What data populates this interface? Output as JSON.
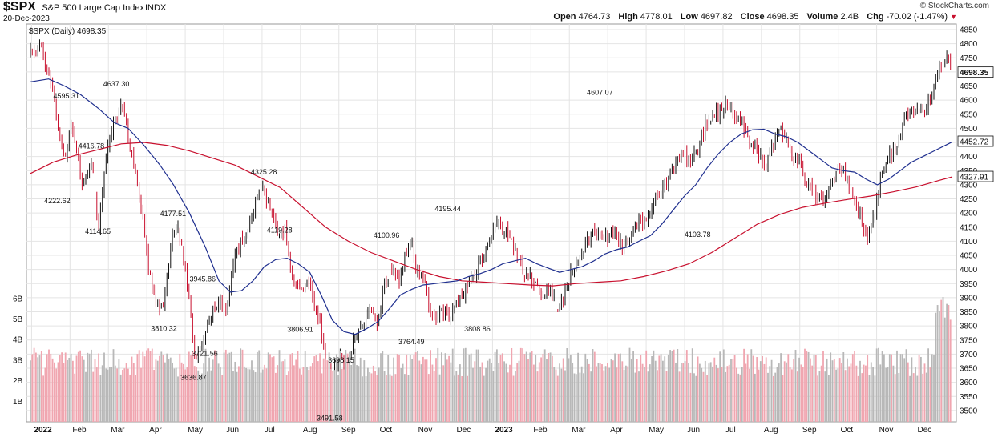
{
  "header": {
    "symbol": "$SPX",
    "name": "S&P 500 Large Cap Index",
    "exchange": "INDX",
    "date": "20-Dec-2023",
    "brand": "© StockCharts.com",
    "legend": "$SPX (Daily) 4698.35"
  },
  "ohlc": {
    "open_label": "Open",
    "open": "4764.73",
    "high_label": "High",
    "high": "4778.01",
    "low_label": "Low",
    "low": "4697.82",
    "close_label": "Close",
    "close": "4698.35",
    "volume_label": "Volume",
    "volume": "2.4B",
    "chg_label": "Chg",
    "chg": "-70.02 (-1.47%)"
  },
  "colors": {
    "up": "#111111",
    "down": "#c8102e",
    "vol_up": "#b8b8b8",
    "vol_down": "#f0a6b0",
    "ma50": "#1f2f8f",
    "ma200": "#c8102e",
    "grid": "#e4e4e4",
    "price_tag_bg": "#ffffff"
  },
  "chart_data": {
    "type": "candlestick",
    "title": "$SPX (Daily)",
    "x_labels": [
      "2022",
      "Feb",
      "Mar",
      "Apr",
      "May",
      "Jun",
      "Jul",
      "Aug",
      "Sep",
      "Oct",
      "Nov",
      "Dec",
      "2023",
      "Feb",
      "Mar",
      "Apr",
      "May",
      "Jun",
      "Jul",
      "Aug",
      "Sep",
      "Oct",
      "Nov",
      "Dec"
    ],
    "ylim": [
      3460,
      4870
    ],
    "y_ticks": [
      3500,
      3550,
      3600,
      3650,
      3700,
      3750,
      3800,
      3850,
      3900,
      3950,
      4000,
      4050,
      4100,
      4150,
      4200,
      4250,
      4300,
      4350,
      4400,
      4450,
      4500,
      4550,
      4600,
      4650,
      4700,
      4750,
      4800,
      4850
    ],
    "volume_ticks": [
      "1B",
      "2B",
      "3B",
      "4B",
      "5B",
      "6B"
    ],
    "volume_lim": [
      0,
      6.5
    ],
    "price_path": [
      [
        0.0,
        4766
      ],
      [
        0.4,
        4796
      ],
      [
        0.8,
        4700
      ],
      [
        1.0,
        4620
      ],
      [
        1.4,
        4432
      ],
      [
        1.6,
        4410
      ],
      [
        1.8,
        4515
      ],
      [
        2.1,
        4400
      ],
      [
        2.3,
        4300
      ],
      [
        2.7,
        4390
      ],
      [
        3.0,
        4140
      ],
      [
        3.3,
        4380
      ],
      [
        3.5,
        4463
      ],
      [
        3.8,
        4550
      ],
      [
        4.0,
        4600
      ],
      [
        4.2,
        4520
      ],
      [
        4.4,
        4420
      ],
      [
        4.7,
        4300
      ],
      [
        5.0,
        4150
      ],
      [
        5.2,
        4000
      ],
      [
        5.5,
        3900
      ],
      [
        5.8,
        3860
      ],
      [
        6.0,
        3960
      ],
      [
        6.2,
        4100
      ],
      [
        6.5,
        4150
      ],
      [
        6.8,
        4000
      ],
      [
        7.0,
        3900
      ],
      [
        7.2,
        3700
      ],
      [
        7.5,
        3720
      ],
      [
        7.8,
        3800
      ],
      [
        8.0,
        3840
      ],
      [
        8.3,
        3900
      ],
      [
        8.6,
        3850
      ],
      [
        8.8,
        3960
      ],
      [
        9.0,
        4050
      ],
      [
        9.3,
        4100
      ],
      [
        9.6,
        4140
      ],
      [
        9.8,
        4200
      ],
      [
        10.0,
        4270
      ],
      [
        10.2,
        4300
      ],
      [
        10.4,
        4250
      ],
      [
        10.6,
        4200
      ],
      [
        10.9,
        4100
      ],
      [
        11.2,
        4140
      ],
      [
        11.5,
        4000
      ],
      [
        11.7,
        3950
      ],
      [
        12.0,
        3900
      ],
      [
        12.3,
        3960
      ],
      [
        12.6,
        3850
      ],
      [
        12.8,
        3790
      ],
      [
        13.0,
        3640
      ],
      [
        13.3,
        3620
      ],
      [
        13.6,
        3690
      ],
      [
        13.9,
        3650
      ],
      [
        14.2,
        3730
      ],
      [
        14.5,
        3790
      ],
      [
        14.8,
        3830
      ],
      [
        15.0,
        3860
      ],
      [
        15.3,
        3800
      ],
      [
        15.6,
        3960
      ],
      [
        15.9,
        4000
      ],
      [
        16.2,
        3950
      ],
      [
        16.5,
        4060
      ],
      [
        16.8,
        4080
      ],
      [
        17.0,
        4000
      ],
      [
        17.3,
        3970
      ],
      [
        17.6,
        3850
      ],
      [
        17.9,
        3820
      ],
      [
        18.2,
        3850
      ],
      [
        18.5,
        3830
      ],
      [
        18.8,
        3890
      ],
      [
        19.0,
        3900
      ],
      [
        19.3,
        3970
      ],
      [
        19.6,
        3990
      ],
      [
        19.9,
        4050
      ],
      [
        20.2,
        4080
      ],
      [
        20.5,
        4170
      ],
      [
        20.8,
        4140
      ],
      [
        21.1,
        4120
      ],
      [
        21.4,
        4050
      ],
      [
        21.7,
        4000
      ],
      [
        22.0,
        3970
      ],
      [
        22.3,
        3960
      ],
      [
        22.6,
        3900
      ],
      [
        22.9,
        3930
      ],
      [
        23.2,
        3860
      ],
      [
        23.5,
        3900
      ],
      [
        23.8,
        3980
      ],
      [
        24.0,
        4020
      ],
      [
        24.3,
        4060
      ],
      [
        24.6,
        4110
      ],
      [
        24.9,
        4130
      ],
      [
        25.2,
        4100
      ],
      [
        25.5,
        4130
      ],
      [
        25.8,
        4110
      ],
      [
        26.1,
        4090
      ],
      [
        26.4,
        4110
      ],
      [
        26.7,
        4160
      ],
      [
        27.0,
        4180
      ],
      [
        27.3,
        4200
      ],
      [
        27.6,
        4270
      ],
      [
        27.9,
        4300
      ],
      [
        28.2,
        4340
      ],
      [
        28.5,
        4380
      ],
      [
        28.8,
        4410
      ],
      [
        29.1,
        4390
      ],
      [
        29.4,
        4430
      ],
      [
        29.7,
        4510
      ],
      [
        30.0,
        4540
      ],
      [
        30.3,
        4560
      ],
      [
        30.6,
        4580
      ],
      [
        30.9,
        4570
      ],
      [
        31.2,
        4520
      ],
      [
        31.5,
        4480
      ],
      [
        31.8,
        4450
      ],
      [
        32.1,
        4400
      ],
      [
        32.4,
        4380
      ],
      [
        32.7,
        4450
      ],
      [
        33.0,
        4500
      ],
      [
        33.3,
        4460
      ],
      [
        33.6,
        4400
      ],
      [
        33.9,
        4370
      ],
      [
        34.2,
        4300
      ],
      [
        34.5,
        4270
      ],
      [
        34.8,
        4240
      ],
      [
        35.1,
        4270
      ],
      [
        35.4,
        4330
      ],
      [
        35.7,
        4360
      ],
      [
        36.0,
        4310
      ],
      [
        36.3,
        4250
      ],
      [
        36.6,
        4180
      ],
      [
        36.9,
        4117
      ],
      [
        37.2,
        4200
      ],
      [
        37.5,
        4360
      ],
      [
        37.8,
        4400
      ],
      [
        38.1,
        4420
      ],
      [
        38.4,
        4510
      ],
      [
        38.7,
        4560
      ],
      [
        39.0,
        4550
      ],
      [
        39.3,
        4570
      ],
      [
        39.6,
        4600
      ],
      [
        39.9,
        4690
      ],
      [
        40.2,
        4740
      ],
      [
        40.4,
        4768
      ],
      [
        40.6,
        4698
      ]
    ],
    "ma50_path": [
      [
        0.0,
        4665
      ],
      [
        0.8,
        4675
      ],
      [
        1.5,
        4650
      ],
      [
        2.2,
        4620
      ],
      [
        3.0,
        4570
      ],
      [
        3.7,
        4520
      ],
      [
        4.3,
        4500
      ],
      [
        5.0,
        4440
      ],
      [
        5.7,
        4370
      ],
      [
        6.3,
        4300
      ],
      [
        7.0,
        4200
      ],
      [
        7.7,
        4080
      ],
      [
        8.3,
        3960
      ],
      [
        8.8,
        3920
      ],
      [
        9.3,
        3925
      ],
      [
        9.8,
        3960
      ],
      [
        10.3,
        4010
      ],
      [
        10.8,
        4035
      ],
      [
        11.3,
        4040
      ],
      [
        11.8,
        4020
      ],
      [
        12.3,
        3990
      ],
      [
        12.8,
        3910
      ],
      [
        13.3,
        3820
      ],
      [
        13.8,
        3780
      ],
      [
        14.3,
        3770
      ],
      [
        14.8,
        3790
      ],
      [
        15.3,
        3815
      ],
      [
        15.8,
        3860
      ],
      [
        16.3,
        3910
      ],
      [
        16.8,
        3930
      ],
      [
        17.3,
        3945
      ],
      [
        17.8,
        3950
      ],
      [
        18.3,
        3955
      ],
      [
        18.8,
        3960
      ],
      [
        19.3,
        3975
      ],
      [
        19.8,
        3985
      ],
      [
        20.3,
        4000
      ],
      [
        20.8,
        4020
      ],
      [
        21.3,
        4030
      ],
      [
        21.8,
        4040
      ],
      [
        22.3,
        4020
      ],
      [
        22.8,
        4005
      ],
      [
        23.3,
        3990
      ],
      [
        23.8,
        4000
      ],
      [
        24.3,
        4010
      ],
      [
        24.8,
        4030
      ],
      [
        25.3,
        4055
      ],
      [
        25.8,
        4070
      ],
      [
        26.3,
        4080
      ],
      [
        26.8,
        4100
      ],
      [
        27.3,
        4120
      ],
      [
        27.8,
        4160
      ],
      [
        28.3,
        4210
      ],
      [
        28.8,
        4260
      ],
      [
        29.3,
        4300
      ],
      [
        29.8,
        4360
      ],
      [
        30.3,
        4410
      ],
      [
        30.8,
        4450
      ],
      [
        31.3,
        4480
      ],
      [
        31.8,
        4495
      ],
      [
        32.3,
        4497
      ],
      [
        32.8,
        4480
      ],
      [
        33.3,
        4470
      ],
      [
        33.8,
        4450
      ],
      [
        34.3,
        4420
      ],
      [
        34.8,
        4390
      ],
      [
        35.3,
        4360
      ],
      [
        35.8,
        4350
      ],
      [
        36.3,
        4345
      ],
      [
        36.8,
        4320
      ],
      [
        37.3,
        4300
      ],
      [
        37.8,
        4320
      ],
      [
        38.3,
        4350
      ],
      [
        38.8,
        4380
      ],
      [
        39.3,
        4400
      ],
      [
        39.8,
        4420
      ],
      [
        40.3,
        4440
      ],
      [
        40.6,
        4452
      ]
    ],
    "ma200_path": [
      [
        0.0,
        4340
      ],
      [
        1.0,
        4380
      ],
      [
        2.0,
        4405
      ],
      [
        3.0,
        4425
      ],
      [
        4.0,
        4445
      ],
      [
        5.0,
        4450
      ],
      [
        6.0,
        4440
      ],
      [
        7.0,
        4420
      ],
      [
        8.0,
        4395
      ],
      [
        9.0,
        4370
      ],
      [
        10.0,
        4330
      ],
      [
        11.0,
        4290
      ],
      [
        12.0,
        4220
      ],
      [
        13.0,
        4150
      ],
      [
        14.0,
        4100
      ],
      [
        15.0,
        4060
      ],
      [
        16.0,
        4030
      ],
      [
        17.0,
        4000
      ],
      [
        18.0,
        3975
      ],
      [
        19.0,
        3960
      ],
      [
        20.0,
        3955
      ],
      [
        21.0,
        3950
      ],
      [
        22.0,
        3945
      ],
      [
        23.0,
        3942
      ],
      [
        24.0,
        3950
      ],
      [
        25.0,
        3955
      ],
      [
        26.0,
        3960
      ],
      [
        27.0,
        3975
      ],
      [
        28.0,
        3995
      ],
      [
        29.0,
        4020
      ],
      [
        30.0,
        4060
      ],
      [
        31.0,
        4110
      ],
      [
        32.0,
        4160
      ],
      [
        33.0,
        4195
      ],
      [
        34.0,
        4220
      ],
      [
        35.0,
        4235
      ],
      [
        36.0,
        4248
      ],
      [
        37.0,
        4260
      ],
      [
        38.0,
        4275
      ],
      [
        39.0,
        4292
      ],
      [
        40.0,
        4315
      ],
      [
        40.6,
        4328
      ]
    ],
    "annotations": [
      {
        "label": "4637.30",
        "t": 3.7,
        "y": 4637
      },
      {
        "label": "4595.31",
        "t": 1.5,
        "y": 4595
      },
      {
        "label": "4416.78",
        "t": 2.6,
        "y": 4417
      },
      {
        "label": "4222.62",
        "t": 1.1,
        "y": 4223
      },
      {
        "label": "4114.65",
        "t": 2.9,
        "y": 4115
      },
      {
        "label": "4177.51",
        "t": 6.2,
        "y": 4178
      },
      {
        "label": "3945.86",
        "t": 7.5,
        "y": 3946
      },
      {
        "label": "3810.32",
        "t": 5.8,
        "y": 3810
      },
      {
        "label": "3721.56",
        "t": 7.6,
        "y": 3722
      },
      {
        "label": "3636.87",
        "t": 7.1,
        "y": 3637
      },
      {
        "label": "4325.28",
        "t": 10.2,
        "y": 4325
      },
      {
        "label": "4119.28",
        "t": 10.9,
        "y": 4119
      },
      {
        "label": "3806.91",
        "t": 11.8,
        "y": 3807
      },
      {
        "label": "3698.15",
        "t": 13.6,
        "y": 3698
      },
      {
        "label": "3491.58",
        "t": 13.1,
        "y": 3492
      },
      {
        "label": "4100.96",
        "t": 15.6,
        "y": 4101
      },
      {
        "label": "3764.49",
        "t": 16.7,
        "y": 3764
      },
      {
        "label": "4195.44",
        "t": 18.3,
        "y": 4195
      },
      {
        "label": "3808.86",
        "t": 19.6,
        "y": 3809
      },
      {
        "label": "4607.07",
        "t": 25.0,
        "y": 4607
      },
      {
        "label": "4103.78",
        "t": 29.3,
        "y": 4104
      }
    ],
    "price_tags": [
      {
        "label": "4698.35",
        "y": 4698,
        "style": "bold"
      },
      {
        "label": "4452.72",
        "y": 4453,
        "style": "normal"
      },
      {
        "label": "4327.91",
        "y": 4328,
        "style": "normal"
      }
    ]
  }
}
